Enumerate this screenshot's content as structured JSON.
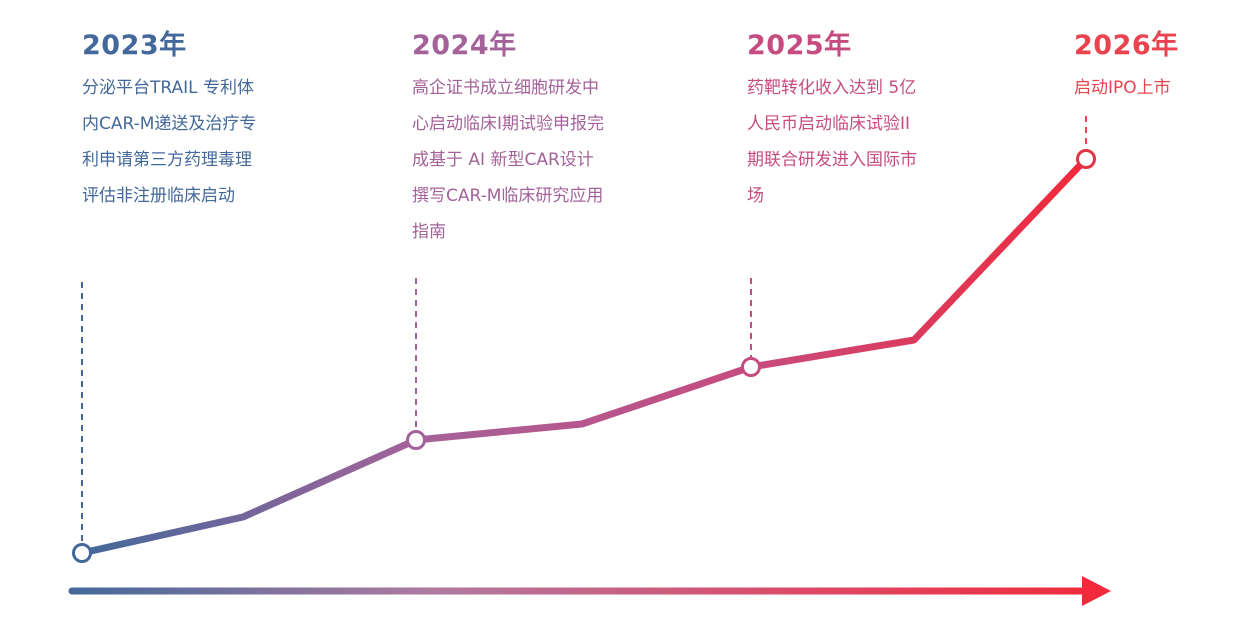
{
  "colors": {
    "start": "#43699a",
    "mid": "#a4629a",
    "mid2": "#c64c80",
    "end": "#f1293a"
  },
  "milestones": [
    {
      "year": "2023年",
      "lines": [
        "分泌平台TRAIL 专利体",
        "内CAR-M递送及治疗专",
        "利申请第三方药理毒理",
        "评估非注册临床启动"
      ]
    },
    {
      "year": "2024年",
      "lines": [
        "高企证书成立细胞研发中",
        "心启动临床I期试验申报完",
        "成基于 AI 新型CAR设计",
        "撰写CAR-M临床研究应用",
        "指南"
      ]
    },
    {
      "year": "2025年",
      "lines": [
        "药靶转化收入达到 5亿",
        "人民币启动临床试验II",
        "期联合研发进入国际市",
        "场"
      ]
    },
    {
      "year": "2026年",
      "lines": [
        "启动IPO上市"
      ]
    }
  ]
}
